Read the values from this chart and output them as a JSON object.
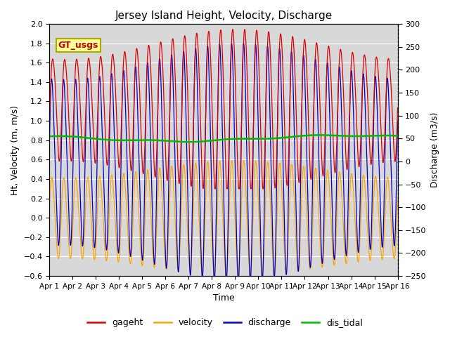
{
  "title": "Jersey Island Height, Velocity, Discharge",
  "xlabel": "Time",
  "ylabel_left": "Ht, Velocity (m, m/s)",
  "ylabel_right": "Discharge (m3/s)",
  "ylim_left": [
    -0.6,
    2.0
  ],
  "ylim_right": [
    -250,
    300
  ],
  "num_days": 15,
  "tide_period_hours": 12.4,
  "background_color": "#ffffff",
  "plot_bg_color": "#d8d8d8",
  "annotation_text": "GT_usgs",
  "annotation_fg": "#cc0000",
  "annotation_bg": "#ffff99",
  "annotation_edge": "#aaaa00",
  "colors": {
    "gageht": "#dd0000",
    "velocity": "#ffa500",
    "discharge": "#0000cc",
    "dis_tidal": "#00bb00"
  },
  "grid_color": "#ffffff",
  "legend_entries": [
    "gageht",
    "velocity",
    "discharge",
    "dis_tidal"
  ]
}
